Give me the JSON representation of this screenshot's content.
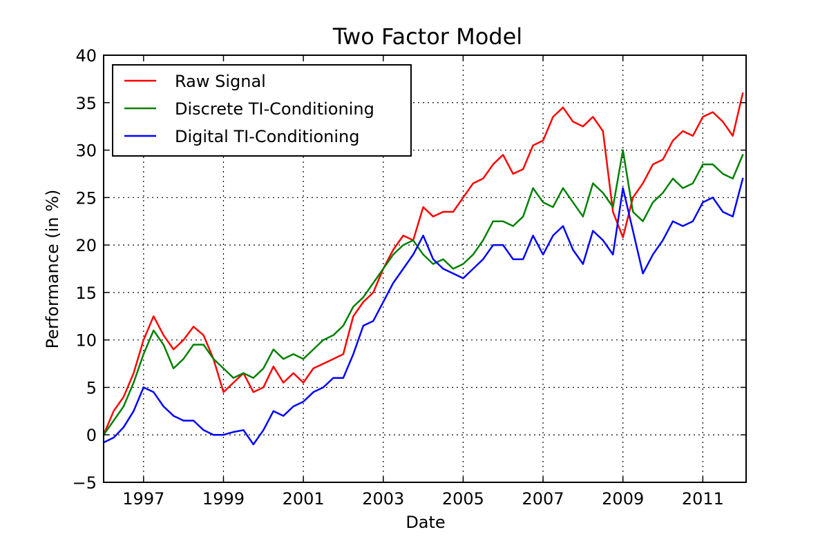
{
  "chart_data": {
    "type": "line",
    "title": "Two Factor Model",
    "xlabel": "Date",
    "ylabel": "Performance (in %)",
    "xlim": [
      "1996-01",
      "2012-02"
    ],
    "ylim": [
      -5,
      40
    ],
    "xtick_labels": [
      "1997",
      "1999",
      "2001",
      "2003",
      "2005",
      "2007",
      "2009",
      "2011"
    ],
    "ytick_labels": [
      "−5",
      "0",
      "5",
      "10",
      "15",
      "20",
      "25",
      "30",
      "35",
      "40"
    ],
    "grid": true,
    "legend_position": "upper-left",
    "x": [
      "1996-01",
      "1996-04",
      "1996-07",
      "1996-10",
      "1997-01",
      "1997-04",
      "1997-07",
      "1997-10",
      "1998-01",
      "1998-04",
      "1998-07",
      "1998-10",
      "1999-01",
      "1999-04",
      "1999-07",
      "1999-10",
      "2000-01",
      "2000-04",
      "2000-07",
      "2000-10",
      "2001-01",
      "2001-04",
      "2001-07",
      "2001-10",
      "2002-01",
      "2002-04",
      "2002-07",
      "2002-10",
      "2003-01",
      "2003-04",
      "2003-07",
      "2003-10",
      "2004-01",
      "2004-04",
      "2004-07",
      "2004-10",
      "2005-01",
      "2005-04",
      "2005-07",
      "2005-10",
      "2006-01",
      "2006-04",
      "2006-07",
      "2006-10",
      "2007-01",
      "2007-04",
      "2007-07",
      "2007-10",
      "2008-01",
      "2008-04",
      "2008-07",
      "2008-10",
      "2009-01",
      "2009-04",
      "2009-07",
      "2009-10",
      "2010-01",
      "2010-04",
      "2010-07",
      "2010-10",
      "2011-01",
      "2011-04",
      "2011-07",
      "2011-10",
      "2012-01"
    ],
    "series": [
      {
        "name": "Raw Signal",
        "color": "#ff0000",
        "values": [
          0,
          2.5,
          4.0,
          6.5,
          10.0,
          12.5,
          10.5,
          9.0,
          10.0,
          11.4,
          10.5,
          8.0,
          4.5,
          5.5,
          6.5,
          4.5,
          5.0,
          7.2,
          5.5,
          6.5,
          5.5,
          7.0,
          7.5,
          8.0,
          8.5,
          12.5,
          14.0,
          15.0,
          17.5,
          19.5,
          21.0,
          20.5,
          24.0,
          23.0,
          23.5,
          23.5,
          25.0,
          26.5,
          27.0,
          28.5,
          29.5,
          27.5,
          28.0,
          30.5,
          31.0,
          33.5,
          34.5,
          33.0,
          32.5,
          33.5,
          32.0,
          23.5,
          20.8,
          25.0,
          26.5,
          28.5,
          29.0,
          31.0,
          32.0,
          31.5,
          33.5,
          34.0,
          33.0,
          31.5,
          36.0
        ]
      },
      {
        "name": "Discrete TI-Conditioning",
        "color": "#008000",
        "values": [
          0,
          1.5,
          3.0,
          5.5,
          8.5,
          11.0,
          9.5,
          7.0,
          8.0,
          9.5,
          9.5,
          8.0,
          7.0,
          6.0,
          6.5,
          6.0,
          7.0,
          9.0,
          8.0,
          8.5,
          8.0,
          9.0,
          10.0,
          10.5,
          11.5,
          13.5,
          14.5,
          16.0,
          17.5,
          19.0,
          20.0,
          20.5,
          19.0,
          18.0,
          18.5,
          17.5,
          18.0,
          19.0,
          20.5,
          22.5,
          22.5,
          22.0,
          23.0,
          26.0,
          24.5,
          24.0,
          26.0,
          24.5,
          23.0,
          26.5,
          25.5,
          24.0,
          30.0,
          23.5,
          22.5,
          24.5,
          25.5,
          27.0,
          26.0,
          26.5,
          28.5,
          28.5,
          27.5,
          27.0,
          29.5
        ]
      },
      {
        "name": "Digital TI-Conditioning",
        "color": "#0000ff",
        "values": [
          -0.8,
          -0.3,
          0.8,
          2.5,
          5.0,
          4.5,
          3.0,
          2.0,
          1.5,
          1.5,
          0.5,
          0.0,
          0.0,
          0.3,
          0.5,
          -1.0,
          0.5,
          2.5,
          2.0,
          3.0,
          3.5,
          4.5,
          5.0,
          6.0,
          6.0,
          8.5,
          11.5,
          12.0,
          14.0,
          16.0,
          17.5,
          19.0,
          21.0,
          18.5,
          17.5,
          17.0,
          16.5,
          17.5,
          18.5,
          20.0,
          20.0,
          18.5,
          18.5,
          21.0,
          19.0,
          21.0,
          22.0,
          19.5,
          18.0,
          21.5,
          20.5,
          19.0,
          26.0,
          21.5,
          17.0,
          19.0,
          20.5,
          22.5,
          22.0,
          22.5,
          24.5,
          25.0,
          23.5,
          23.0,
          27.0
        ]
      }
    ]
  }
}
